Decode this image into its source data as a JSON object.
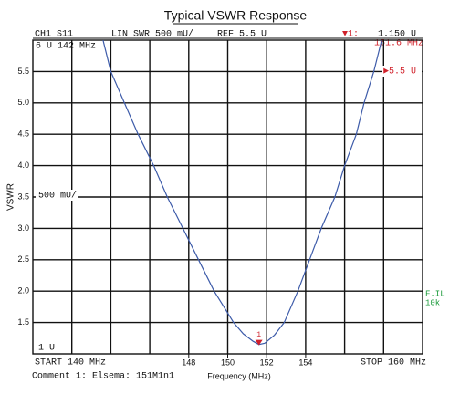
{
  "chart_data": {
    "type": "line",
    "title": "Typical VSWR Response",
    "xlabel": "Frequency (MHz)",
    "ylabel": "VSWR",
    "xlim": [
      140,
      160
    ],
    "ylim": [
      1,
      6
    ],
    "xticks": [
      148,
      150,
      152,
      154
    ],
    "xgrid": [
      142,
      144,
      146,
      148,
      150,
      152,
      154,
      156,
      158
    ],
    "yticks": [
      1.5,
      {
        "value": 2,
        "label": "2.0"
      },
      2.5,
      {
        "value": 3,
        "label": "3.0"
      },
      3.5,
      {
        "value": 4,
        "label": "4.0"
      },
      4.5,
      {
        "value": 5,
        "label": "5.0"
      },
      5.5
    ],
    "grid": true,
    "series": [
      {
        "color": "#3d5ba9",
        "x": [
          143.6,
          144.0,
          144.7,
          145.4,
          146.2,
          146.9,
          147.7,
          148.5,
          149.3,
          150.3,
          150.8,
          151.3,
          151.6,
          151.9,
          152.4,
          152.9,
          153.6,
          154.2,
          154.8,
          155.5,
          156.0,
          156.6,
          157.0,
          157.5,
          157.9
        ],
        "values": [
          6.0,
          5.5,
          5.0,
          4.5,
          4.0,
          3.5,
          3.0,
          2.5,
          2.0,
          1.5,
          1.32,
          1.2,
          1.15,
          1.17,
          1.3,
          1.5,
          2.0,
          2.5,
          3.0,
          3.5,
          4.0,
          4.5,
          5.0,
          5.5,
          6.0
        ]
      }
    ],
    "marker": {
      "label": "1",
      "x": 151.6,
      "value": 1.15,
      "color": "#d0202a"
    },
    "annotations": {
      "channel": "CH1 S11",
      "format": "LIN SWR 500 mU/",
      "ref": "REF 5.5 U",
      "marker_label": "▼1:",
      "marker_value": "1.150 U",
      "marker_freq": "151.6 MHz",
      "top": "6 U 142 MHz",
      "scale": "500 mU/",
      "bottom": "1 U",
      "ref_level": "►5.5 U",
      "start": "START 140 MHz",
      "stop": "STOP 160 MHz",
      "comment": "Comment 1: Elsema: 151M1n1",
      "filter": "F.IL",
      "bandwidth": "10k"
    }
  }
}
